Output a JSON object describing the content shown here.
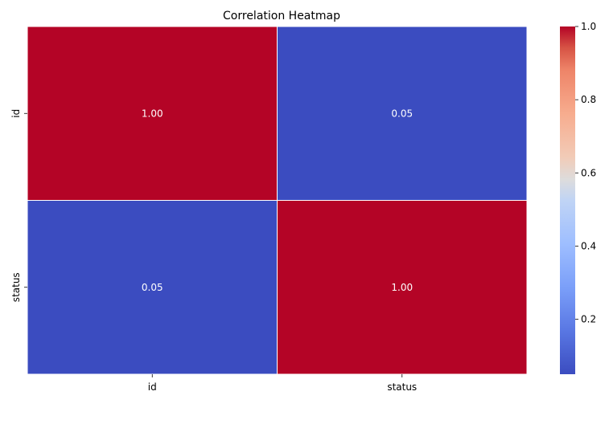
{
  "chart_data": {
    "type": "heatmap",
    "title": "Correlation Heatmap",
    "x_categories": [
      "id",
      "status"
    ],
    "y_categories": [
      "id",
      "status"
    ],
    "values": [
      [
        1.0,
        0.05
      ],
      [
        0.05,
        1.0
      ]
    ],
    "value_labels": [
      [
        "1.00",
        "0.05"
      ],
      [
        "0.05",
        "1.00"
      ]
    ],
    "colormap": "coolwarm",
    "colorbar": {
      "range": [
        0.05,
        1.0
      ],
      "ticks": [
        0.2,
        0.4,
        0.6,
        0.8,
        1.0
      ],
      "tick_labels": [
        "0.2",
        "0.4",
        "0.6",
        "0.8",
        "1.0"
      ]
    },
    "colors": {
      "low": "#3b4cc0",
      "mid": "#dddcdc",
      "high": "#b40426",
      "cell_text": "#ffffff",
      "grid_line": "#ffffff"
    }
  }
}
